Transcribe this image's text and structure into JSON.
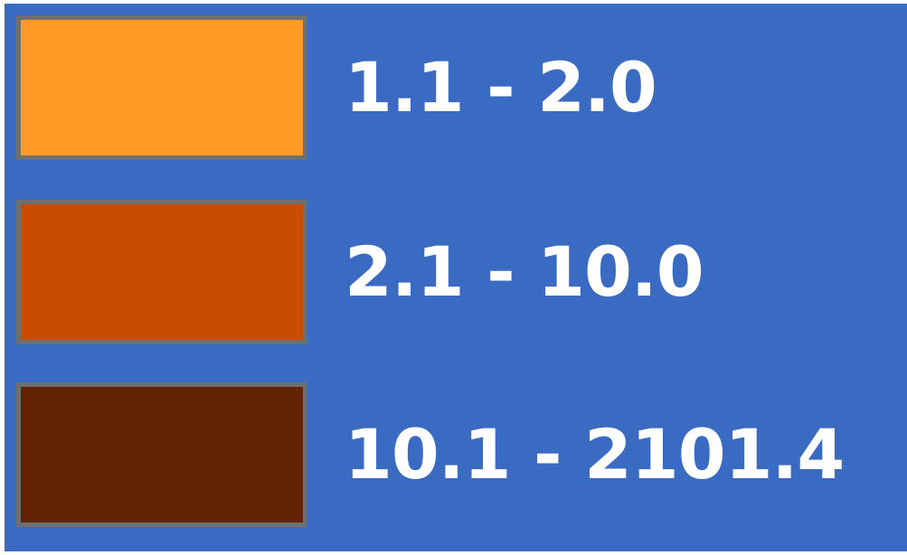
{
  "legend": {
    "background_color": "#3a6bc3",
    "border_color": "#6f6f6f",
    "items": [
      {
        "label": "1.1 - 2.0",
        "color": "#ff9a26"
      },
      {
        "label": "2.1 - 10.0",
        "color": "#ca4b02"
      },
      {
        "label": "10.1 - 2101.4",
        "color": "#622305"
      }
    ]
  }
}
